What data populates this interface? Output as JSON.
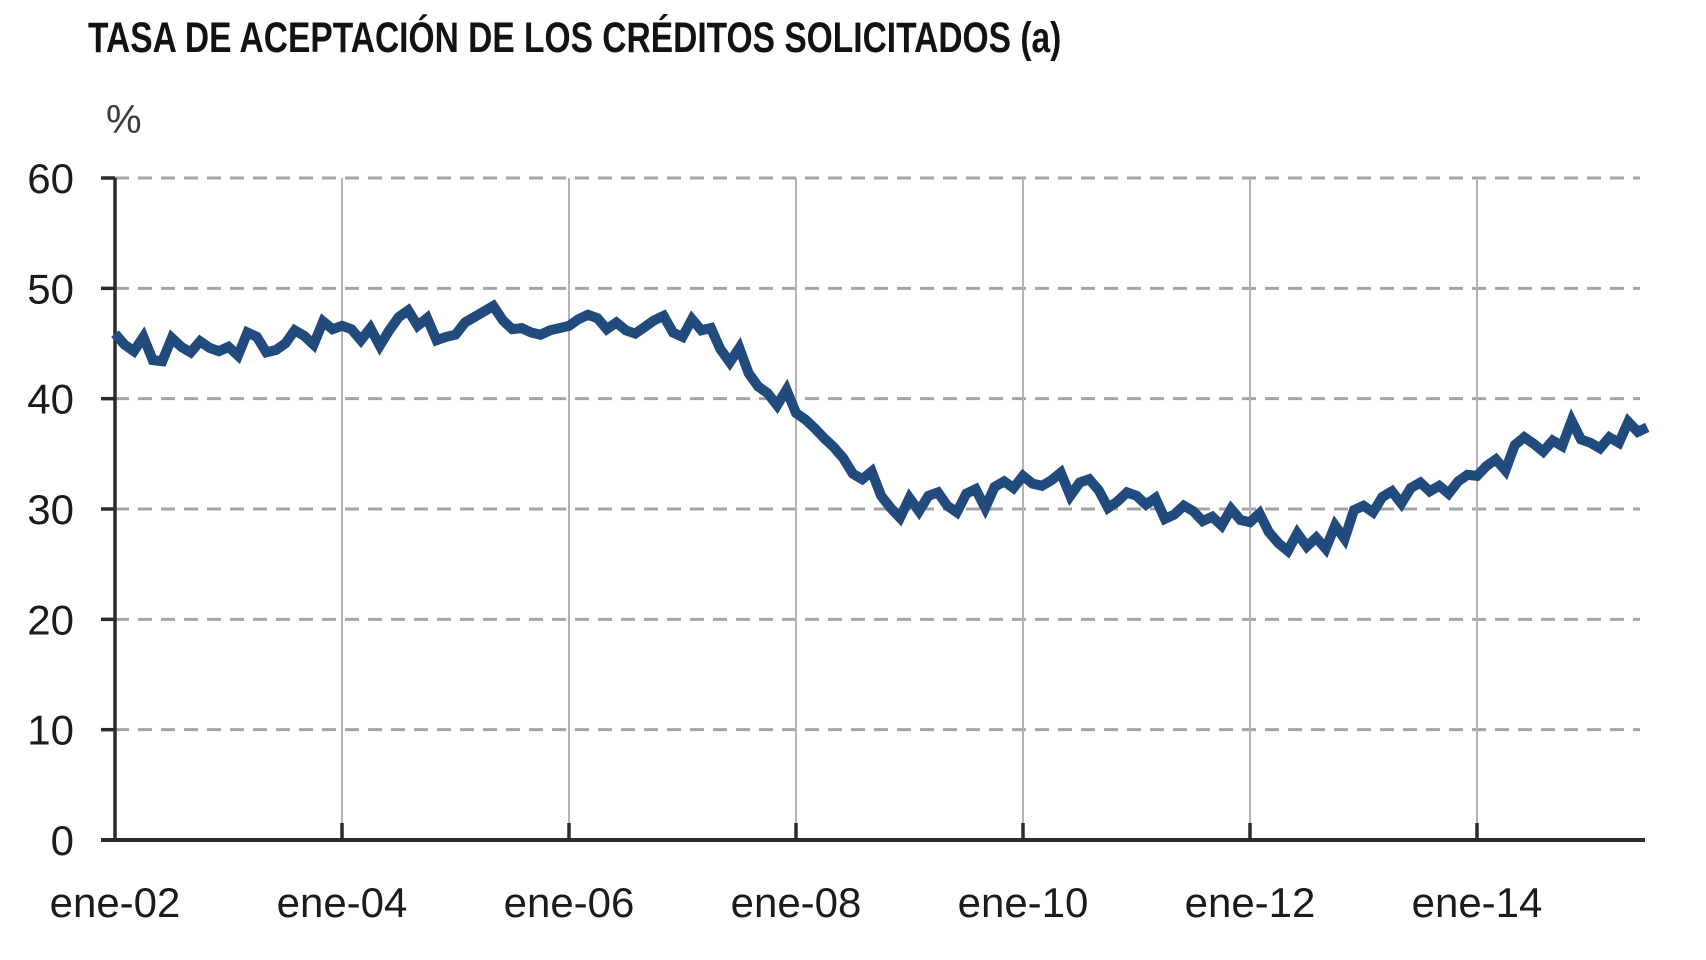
{
  "title": "TASA DE ACEPTACIÓN DE LOS CRÉDITOS SOLICITADOS (a)",
  "chart_data": {
    "type": "line",
    "title": "TASA DE ACEPTACIÓN DE LOS CRÉDITOS SOLICITADOS (a)",
    "ylabel": "%",
    "xlabel": "",
    "ylim": [
      0,
      60
    ],
    "yticks": [
      0,
      10,
      20,
      30,
      40,
      50,
      60
    ],
    "grid": {
      "horizontal": "dashed",
      "vertical": "solid"
    },
    "legend_position": "none",
    "line_color": "#214a7d",
    "x_axis": {
      "tick_labels": [
        "ene-02",
        "ene-04",
        "ene-06",
        "ene-08",
        "ene-10",
        "ene-12",
        "ene-14"
      ],
      "tick_month_indices": [
        0,
        24,
        48,
        72,
        96,
        120,
        144
      ],
      "start": "ene-02",
      "frequency": "mensual"
    },
    "values": [
      45.9,
      44.9,
      44.3,
      45.6,
      43.5,
      43.4,
      45.5,
      44.7,
      44.2,
      45.2,
      44.6,
      44.3,
      44.7,
      43.9,
      46.0,
      45.6,
      44.2,
      44.4,
      45.0,
      46.2,
      45.7,
      44.9,
      47.0,
      46.3,
      46.6,
      46.3,
      45.3,
      46.4,
      44.8,
      46.2,
      47.4,
      48.0,
      46.6,
      47.3,
      45.3,
      45.6,
      45.8,
      46.9,
      47.4,
      47.9,
      48.4,
      47.1,
      46.3,
      46.4,
      46.0,
      45.8,
      46.2,
      46.4,
      46.6,
      47.2,
      47.6,
      47.3,
      46.3,
      46.9,
      46.2,
      45.9,
      46.5,
      47.1,
      47.5,
      46.0,
      45.6,
      47.2,
      46.2,
      46.4,
      44.5,
      43.3,
      44.6,
      42.3,
      41.1,
      40.5,
      39.4,
      40.8,
      38.7,
      38.1,
      37.3,
      36.4,
      35.6,
      34.6,
      33.2,
      32.7,
      33.4,
      31.2,
      30.1,
      29.2,
      31.0,
      29.8,
      31.2,
      31.5,
      30.3,
      29.7,
      31.4,
      31.8,
      30.1,
      32.0,
      32.5,
      31.9,
      33.0,
      32.3,
      32.1,
      32.6,
      33.3,
      31.2,
      32.4,
      32.7,
      31.7,
      30.1,
      30.7,
      31.5,
      31.2,
      30.4,
      31.0,
      29.1,
      29.5,
      30.3,
      29.8,
      28.9,
      29.3,
      28.5,
      30.0,
      29.0,
      28.8,
      29.6,
      27.9,
      26.9,
      26.2,
      27.8,
      26.6,
      27.4,
      26.4,
      28.5,
      27.3,
      29.9,
      30.3,
      29.7,
      31.1,
      31.6,
      30.5,
      31.9,
      32.4,
      31.6,
      32.1,
      31.4,
      32.5,
      33.1,
      33.0,
      33.9,
      34.5,
      33.5,
      35.8,
      36.5,
      35.9,
      35.2,
      36.2,
      35.7,
      38.0,
      36.3,
      36.0,
      35.5,
      36.5,
      36.0,
      37.9,
      37.0,
      37.4
    ]
  }
}
